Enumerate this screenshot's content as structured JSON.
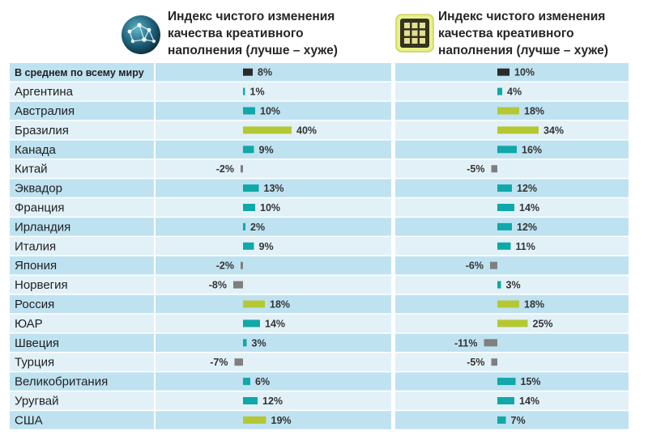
{
  "header": {
    "left_title": "Индекс чистого изменения качества креативного наполнения (лучше – хуже)",
    "right_title": "Индекс чистого изменения качества креативного наполнения (лучше – хуже)",
    "left_icon": "globe-network-icon",
    "right_icon": "grid-tile-icon"
  },
  "colors": {
    "average": "#2b2b2b",
    "normal": "#10a8a8",
    "high": "#b5c834",
    "negative": "#7f7f7f",
    "row_dark": "#bfe2f1",
    "row_light": "#e2f1f8"
  },
  "chart_data": {
    "type": "bar",
    "orientation": "horizontal",
    "categories": [
      "В среднем по всему миру",
      "Аргентина",
      "Австралия",
      "Бразилия",
      "Канада",
      "Китай",
      "Эквадор",
      "Франция",
      "Ирландия",
      "Италия",
      "Япония",
      "Норвегия",
      "Россия",
      "ЮАР",
      "Швеция",
      "Турция",
      "Великобритания",
      "Уругвай",
      "США"
    ],
    "series": [
      {
        "name": "Индекс чистого изменения качества креативного наполнения (лучше – хуже)",
        "values": [
          8,
          1,
          10,
          40,
          9,
          -2,
          13,
          10,
          2,
          9,
          -2,
          -8,
          18,
          14,
          3,
          -7,
          6,
          12,
          19
        ],
        "labels": [
          "8%",
          "1%",
          "10%",
          "40%",
          "9%",
          "-2%",
          "13%",
          "10%",
          "2%",
          "9%",
          "-2%",
          "-8%",
          "18%",
          "14%",
          "3%",
          "-7%",
          "6%",
          "12%",
          "19%"
        ]
      },
      {
        "name": "Индекс чистого изменения качества креативного наполнения (лучше – хуже)",
        "values": [
          10,
          4,
          18,
          34,
          16,
          -5,
          12,
          14,
          12,
          11,
          -6,
          3,
          18,
          25,
          -11,
          -5,
          15,
          14,
          7
        ],
        "labels": [
          "10%",
          "4%",
          "18%",
          "34%",
          "16%",
          "-5%",
          "12%",
          "14%",
          "12%",
          "11%",
          "-6%",
          "3%",
          "18%",
          "25%",
          "-11%",
          "-5%",
          "15%",
          "14%",
          "7%"
        ]
      }
    ],
    "highlight_threshold": 17,
    "unit": "%"
  }
}
